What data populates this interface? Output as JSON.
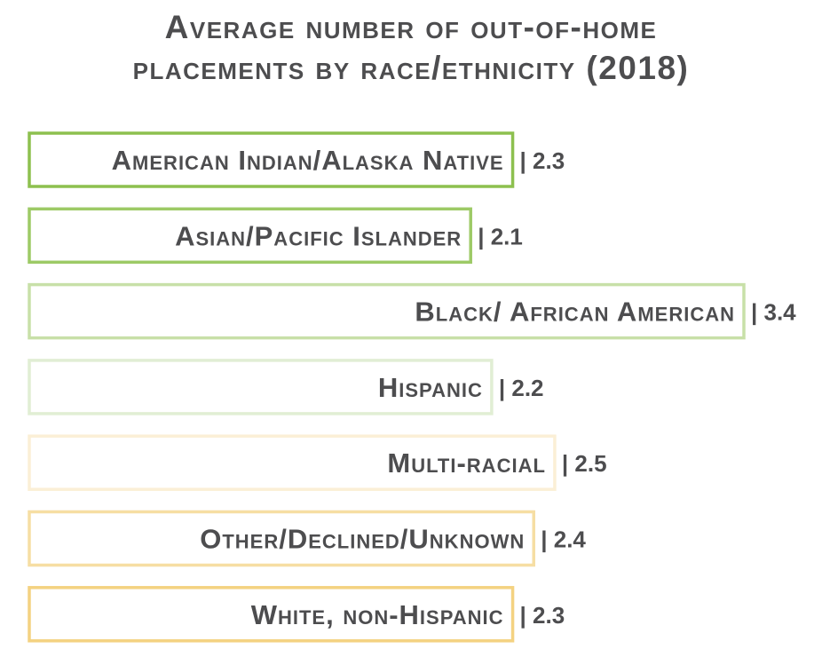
{
  "chart_data": {
    "type": "bar",
    "orientation": "horizontal",
    "title_lines": [
      "Average number of out-of-home",
      "placements by race/ethnicity (2018)"
    ],
    "categories": [
      "American Indian/Alaska Native",
      "Asian/Pacific Islander",
      "Black/ African American",
      "Hispanic",
      "Multi-racial",
      "Other/Declined/Unknown",
      "White, non-Hispanic"
    ],
    "values": [
      2.3,
      2.1,
      3.4,
      2.2,
      2.5,
      2.4,
      2.3
    ],
    "value_labels": [
      "| 2.3",
      "| 2.1",
      "| 3.4",
      "| 2.2",
      "| 2.5",
      "| 2.4",
      "| 2.3"
    ],
    "bar_colors": [
      "#8dc04f",
      "#9dca66",
      "#c8e0a8",
      "#e1eed4",
      "#fbefd6",
      "#f6dea3",
      "#f4d281"
    ],
    "xlim": [
      0,
      3.4
    ],
    "grid": false,
    "legend": "none",
    "bar_style": "outlined"
  }
}
